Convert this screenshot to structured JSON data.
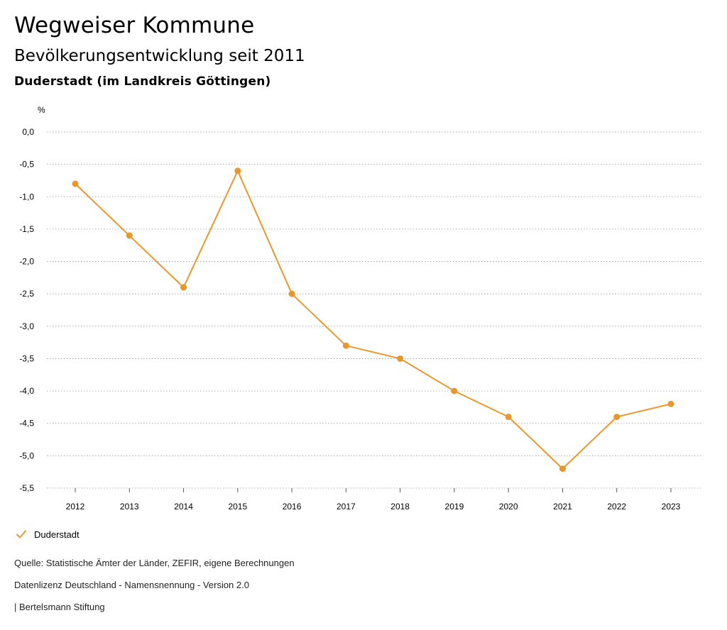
{
  "header": {
    "title": "Wegweiser Kommune",
    "subtitle": "Bevölkerungsentwicklung seit 2011",
    "region": "Duderstadt (im Landkreis Göttingen)"
  },
  "chart_data": {
    "type": "line",
    "unit_label": "%",
    "x": [
      "2012",
      "2013",
      "2014",
      "2015",
      "2016",
      "2017",
      "2018",
      "2019",
      "2020",
      "2021",
      "2022",
      "2023"
    ],
    "series": [
      {
        "name": "Duderstadt",
        "color": "#E9972D",
        "values": [
          -0.8,
          -1.6,
          -2.4,
          -0.6,
          -2.5,
          -3.3,
          -3.5,
          -4.0,
          -4.4,
          -5.2,
          -4.4,
          -4.2
        ]
      }
    ],
    "yticks": [
      "0,0",
      "-0,5",
      "-1,0",
      "-1,5",
      "-2,0",
      "-2,5",
      "-3,0",
      "-3,5",
      "-4,0",
      "-4,5",
      "-5,0",
      "-5,5"
    ],
    "ytick_values": [
      0,
      -0.5,
      -1.0,
      -1.5,
      -2.0,
      -2.5,
      -3.0,
      -3.5,
      -4.0,
      -4.5,
      -5.0,
      -5.5
    ],
    "ylim": [
      -5.5,
      0
    ],
    "grid": true,
    "legend_position": "bottom-left"
  },
  "legend": {
    "label": "Duderstadt"
  },
  "footer": {
    "source": "Quelle: Statistische Ämter der Länder, ZEFIR, eigene Berechnungen",
    "license": "Datenlizenz Deutschland - Namensnennung - Version 2.0",
    "publisher": "| Bertelsmann Stiftung"
  }
}
